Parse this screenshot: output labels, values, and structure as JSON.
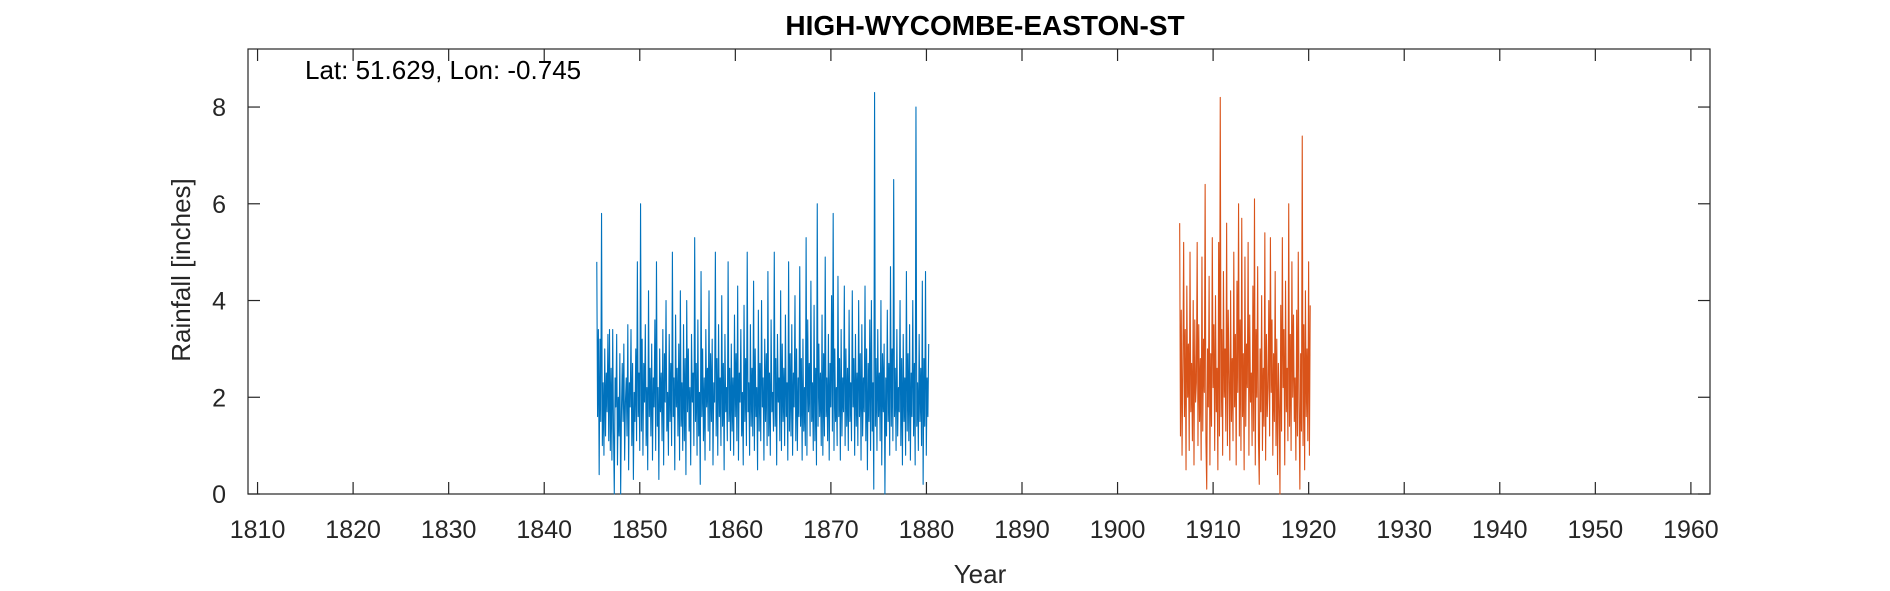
{
  "chart_data": {
    "type": "line",
    "title": "HIGH-WYCOMBE-EASTON-ST",
    "xlabel": "Year",
    "ylabel": "Rainfall [inches]",
    "annotation": "Lat: 51.629, Lon: -0.745",
    "xlim": [
      1809,
      1962
    ],
    "ylim": [
      0,
      9.2
    ],
    "xticks": [
      1810,
      1820,
      1830,
      1840,
      1850,
      1860,
      1870,
      1880,
      1890,
      1900,
      1910,
      1920,
      1930,
      1940,
      1950,
      1960
    ],
    "yticks": [
      0,
      2,
      4,
      6,
      8
    ],
    "grid": false,
    "series": [
      {
        "color": "#0072BD",
        "x_start": 1845.5,
        "step": 0.0833,
        "values": [
          4.8,
          1.6,
          3.4,
          0.4,
          3.2,
          1.5,
          5.8,
          1.0,
          2.3,
          0.8,
          3.0,
          1.2,
          2.5,
          1.7,
          3.3,
          1.1,
          3.4,
          0.9,
          2.6,
          0.7,
          3.4,
          1.3,
          0.0,
          2.4,
          1.8,
          3.3,
          0.6,
          2.0,
          1.2,
          2.9,
          0.0,
          1.7,
          2.7,
          1.5,
          3.1,
          0.7,
          1.9,
          2.4,
          1.2,
          3.5,
          0.5,
          2.3,
          1.8,
          3.4,
          1.0,
          2.7,
          0.3,
          2.1,
          1.5,
          3.0,
          1.1,
          4.8,
          1.6,
          2.5,
          0.9,
          6.0,
          1.3,
          3.2,
          0.8,
          2.7,
          1.9,
          3.5,
          1.0,
          2.2,
          0.5,
          4.2,
          1.6,
          2.6,
          1.2,
          3.1,
          0.7,
          2.4,
          1.8,
          3.6,
          0.9,
          4.8,
          1.4,
          2.2,
          0.3,
          3.0,
          1.7,
          2.5,
          1.1,
          3.4,
          0.6,
          2.9,
          1.9,
          4.0,
          1.3,
          2.1,
          0.8,
          3.3,
          1.5,
          2.7,
          1.0,
          5.0,
          1.6,
          2.4,
          0.5,
          3.7,
          1.8,
          2.6,
          1.2,
          3.1,
          0.7,
          4.2,
          1.4,
          2.3,
          0.9,
          3.5,
          1.1,
          2.8,
          0.4,
          4.0,
          1.7,
          3.0,
          1.3,
          2.2,
          0.6,
          3.3,
          1.9,
          2.5,
          1.0,
          5.3,
          1.5,
          2.7,
          0.8,
          3.6,
          1.2,
          2.1,
          0.2,
          4.6,
          1.6,
          3.0,
          1.1,
          2.4,
          0.7,
          3.4,
          1.8,
          2.6,
          1.3,
          4.2,
          0.9,
          2.9,
          1.5,
          3.2,
          0.6,
          2.3,
          1.9,
          5.0,
          1.2,
          2.8,
          0.8,
          3.5,
          1.6,
          2.4,
          1.0,
          4.1,
          1.4,
          2.7,
          0.5,
          3.3,
          1.7,
          2.2,
          1.1,
          4.8,
          1.5,
          2.6,
          0.9,
          3.1,
          1.3,
          2.4,
          0.8,
          3.7,
          1.6,
          2.9,
          1.1,
          4.3,
          0.7,
          2.5,
          1.9,
          3.4,
          1.2,
          2.1,
          0.6,
          3.9,
          1.5,
          2.8,
          1.0,
          5.0,
          1.7,
          2.3,
          0.8,
          3.5,
          1.4,
          2.6,
          1.2,
          4.4,
          0.9,
          3.0,
          1.6,
          2.2,
          0.5,
          3.8,
          1.3,
          2.7,
          1.1,
          4.0,
          1.8,
          2.4,
          0.7,
          3.2,
          1.5,
          2.9,
          1.0,
          4.6,
          1.2,
          2.5,
          0.8,
          3.6,
          1.7,
          2.1,
          1.3,
          5.0,
          1.4,
          2.8,
          0.6,
          3.3,
          1.9,
          2.4,
          1.1,
          4.2,
          0.9,
          3.1,
          1.5,
          2.6,
          1.0,
          3.7,
          1.6,
          2.3,
          0.7,
          4.8,
          1.3,
          2.9,
          1.2,
          3.5,
          0.8,
          2.5,
          1.8,
          4.1,
          1.1,
          3.0,
          0.9,
          2.4,
          1.6,
          4.7,
          1.4,
          2.8,
          0.7,
          3.2,
          1.3,
          2.2,
          1.0,
          5.3,
          0.8,
          3.6,
          1.7,
          2.7,
          1.2,
          4.4,
          1.5,
          2.3,
          0.9,
          3.9,
          1.1,
          2.6,
          0.6,
          6.0,
          1.4,
          3.1,
          1.6,
          2.5,
          1.0,
          3.7,
          0.8,
          2.9,
          1.2,
          4.9,
          1.6,
          2.4,
          1.1,
          3.3,
          0.7,
          2.7,
          1.8,
          4.1,
          1.3,
          5.8,
          0.9,
          3.0,
          1.5,
          2.2,
          1.0,
          4.5,
          1.6,
          2.8,
          0.7,
          3.4,
          1.2,
          2.4,
          1.7,
          4.3,
          1.0,
          3.0,
          1.4,
          2.6,
          0.9,
          3.8,
          1.5,
          2.3,
          1.1,
          4.2,
          1.8,
          2.8,
          0.8,
          3.3,
          1.4,
          2.5,
          1.0,
          4.0,
          1.6,
          2.9,
          0.7,
          3.5,
          1.2,
          2.4,
          1.7,
          4.3,
          1.1,
          3.0,
          0.5,
          2.7,
          1.5,
          3.6,
          0.9,
          4.0,
          1.3,
          2.3,
          0.1,
          8.3,
          1.4,
          2.8,
          0.9,
          3.4,
          1.6,
          2.5,
          1.1,
          4.0,
          0.6,
          2.9,
          1.7,
          3.1,
          0.0,
          2.4,
          1.2,
          3.8,
          1.5,
          2.7,
          0.8,
          4.7,
          1.4,
          3.0,
          1.1,
          6.5,
          1.6,
          2.6,
          0.9,
          3.4,
          1.2,
          2.2,
          1.7,
          4.0,
          1.0,
          2.8,
          0.6,
          3.3,
          1.5,
          2.4,
          0.8,
          4.6,
          1.3,
          2.9,
          1.1,
          3.5,
          0.7,
          2.5,
          1.6,
          4.0,
          1.2,
          2.7,
          0.6,
          8.0,
          1.4,
          2.3,
          0.9,
          3.3,
          1.5,
          2.6,
          1.0,
          4.4,
          0.2,
          2.8,
          1.4,
          4.6,
          0.8,
          2.4,
          1.6,
          3.1
        ]
      },
      {
        "color": "#D95319",
        "x_start": 1906.5,
        "step": 0.0833,
        "values": [
          5.6,
          1.2,
          3.8,
          0.8,
          2.6,
          5.2,
          1.6,
          3.4,
          0.5,
          4.3,
          2.0,
          3.1,
          0.9,
          5.0,
          1.7,
          2.7,
          1.1,
          4.0,
          0.6,
          3.6,
          1.9,
          2.3,
          5.2,
          1.0,
          3.5,
          1.5,
          2.8,
          0.7,
          4.9,
          1.3,
          3.2,
          2.1,
          6.4,
          1.1,
          0.1,
          3.0,
          1.8,
          4.5,
          0.6,
          2.9,
          1.4,
          5.3,
          2.2,
          3.5,
          0.9,
          4.1,
          1.7,
          2.6,
          0.5,
          5.2,
          1.2,
          8.2,
          1.6,
          3.4,
          0.8,
          4.6,
          2.0,
          3.0,
          1.3,
          5.6,
          1.0,
          3.8,
          2.4,
          0.7,
          4.2,
          1.5,
          2.8,
          1.1,
          5.0,
          1.8,
          3.3,
          0.6,
          4.4,
          2.1,
          6.0,
          1.2,
          3.6,
          0.9,
          5.7,
          1.6,
          2.9,
          0.5,
          4.9,
          1.4,
          3.1,
          2.2,
          5.2,
          0.8,
          3.7,
          1.9,
          2.5,
          1.0,
          4.3,
          1.3,
          6.1,
          0.6,
          3.4,
          2.0,
          4.7,
          1.1,
          0.2,
          3.0,
          1.7,
          4.1,
          0.9,
          2.6,
          1.4,
          5.4,
          0.7,
          3.3,
          1.6,
          2.2,
          4.0,
          1.2,
          5.3,
          2.1,
          3.6,
          0.8,
          2.9,
          1.5,
          4.6,
          1.0,
          3.2,
          0.4,
          2.7,
          1.8,
          0.0,
          3.9,
          1.3,
          5.3,
          2.2,
          3.4,
          0.6,
          4.4,
          1.7,
          2.6,
          1.1,
          6.0,
          1.4,
          3.3,
          0.9,
          4.8,
          2.0,
          3.7,
          1.5,
          2.4,
          0.7,
          3.8,
          1.2,
          5.0,
          1.9,
          0.1,
          2.9,
          1.3,
          7.4,
          1.0,
          3.5,
          0.5,
          4.2,
          1.6,
          3.0,
          1.1,
          4.8,
          0.8,
          3.9
        ]
      }
    ]
  }
}
